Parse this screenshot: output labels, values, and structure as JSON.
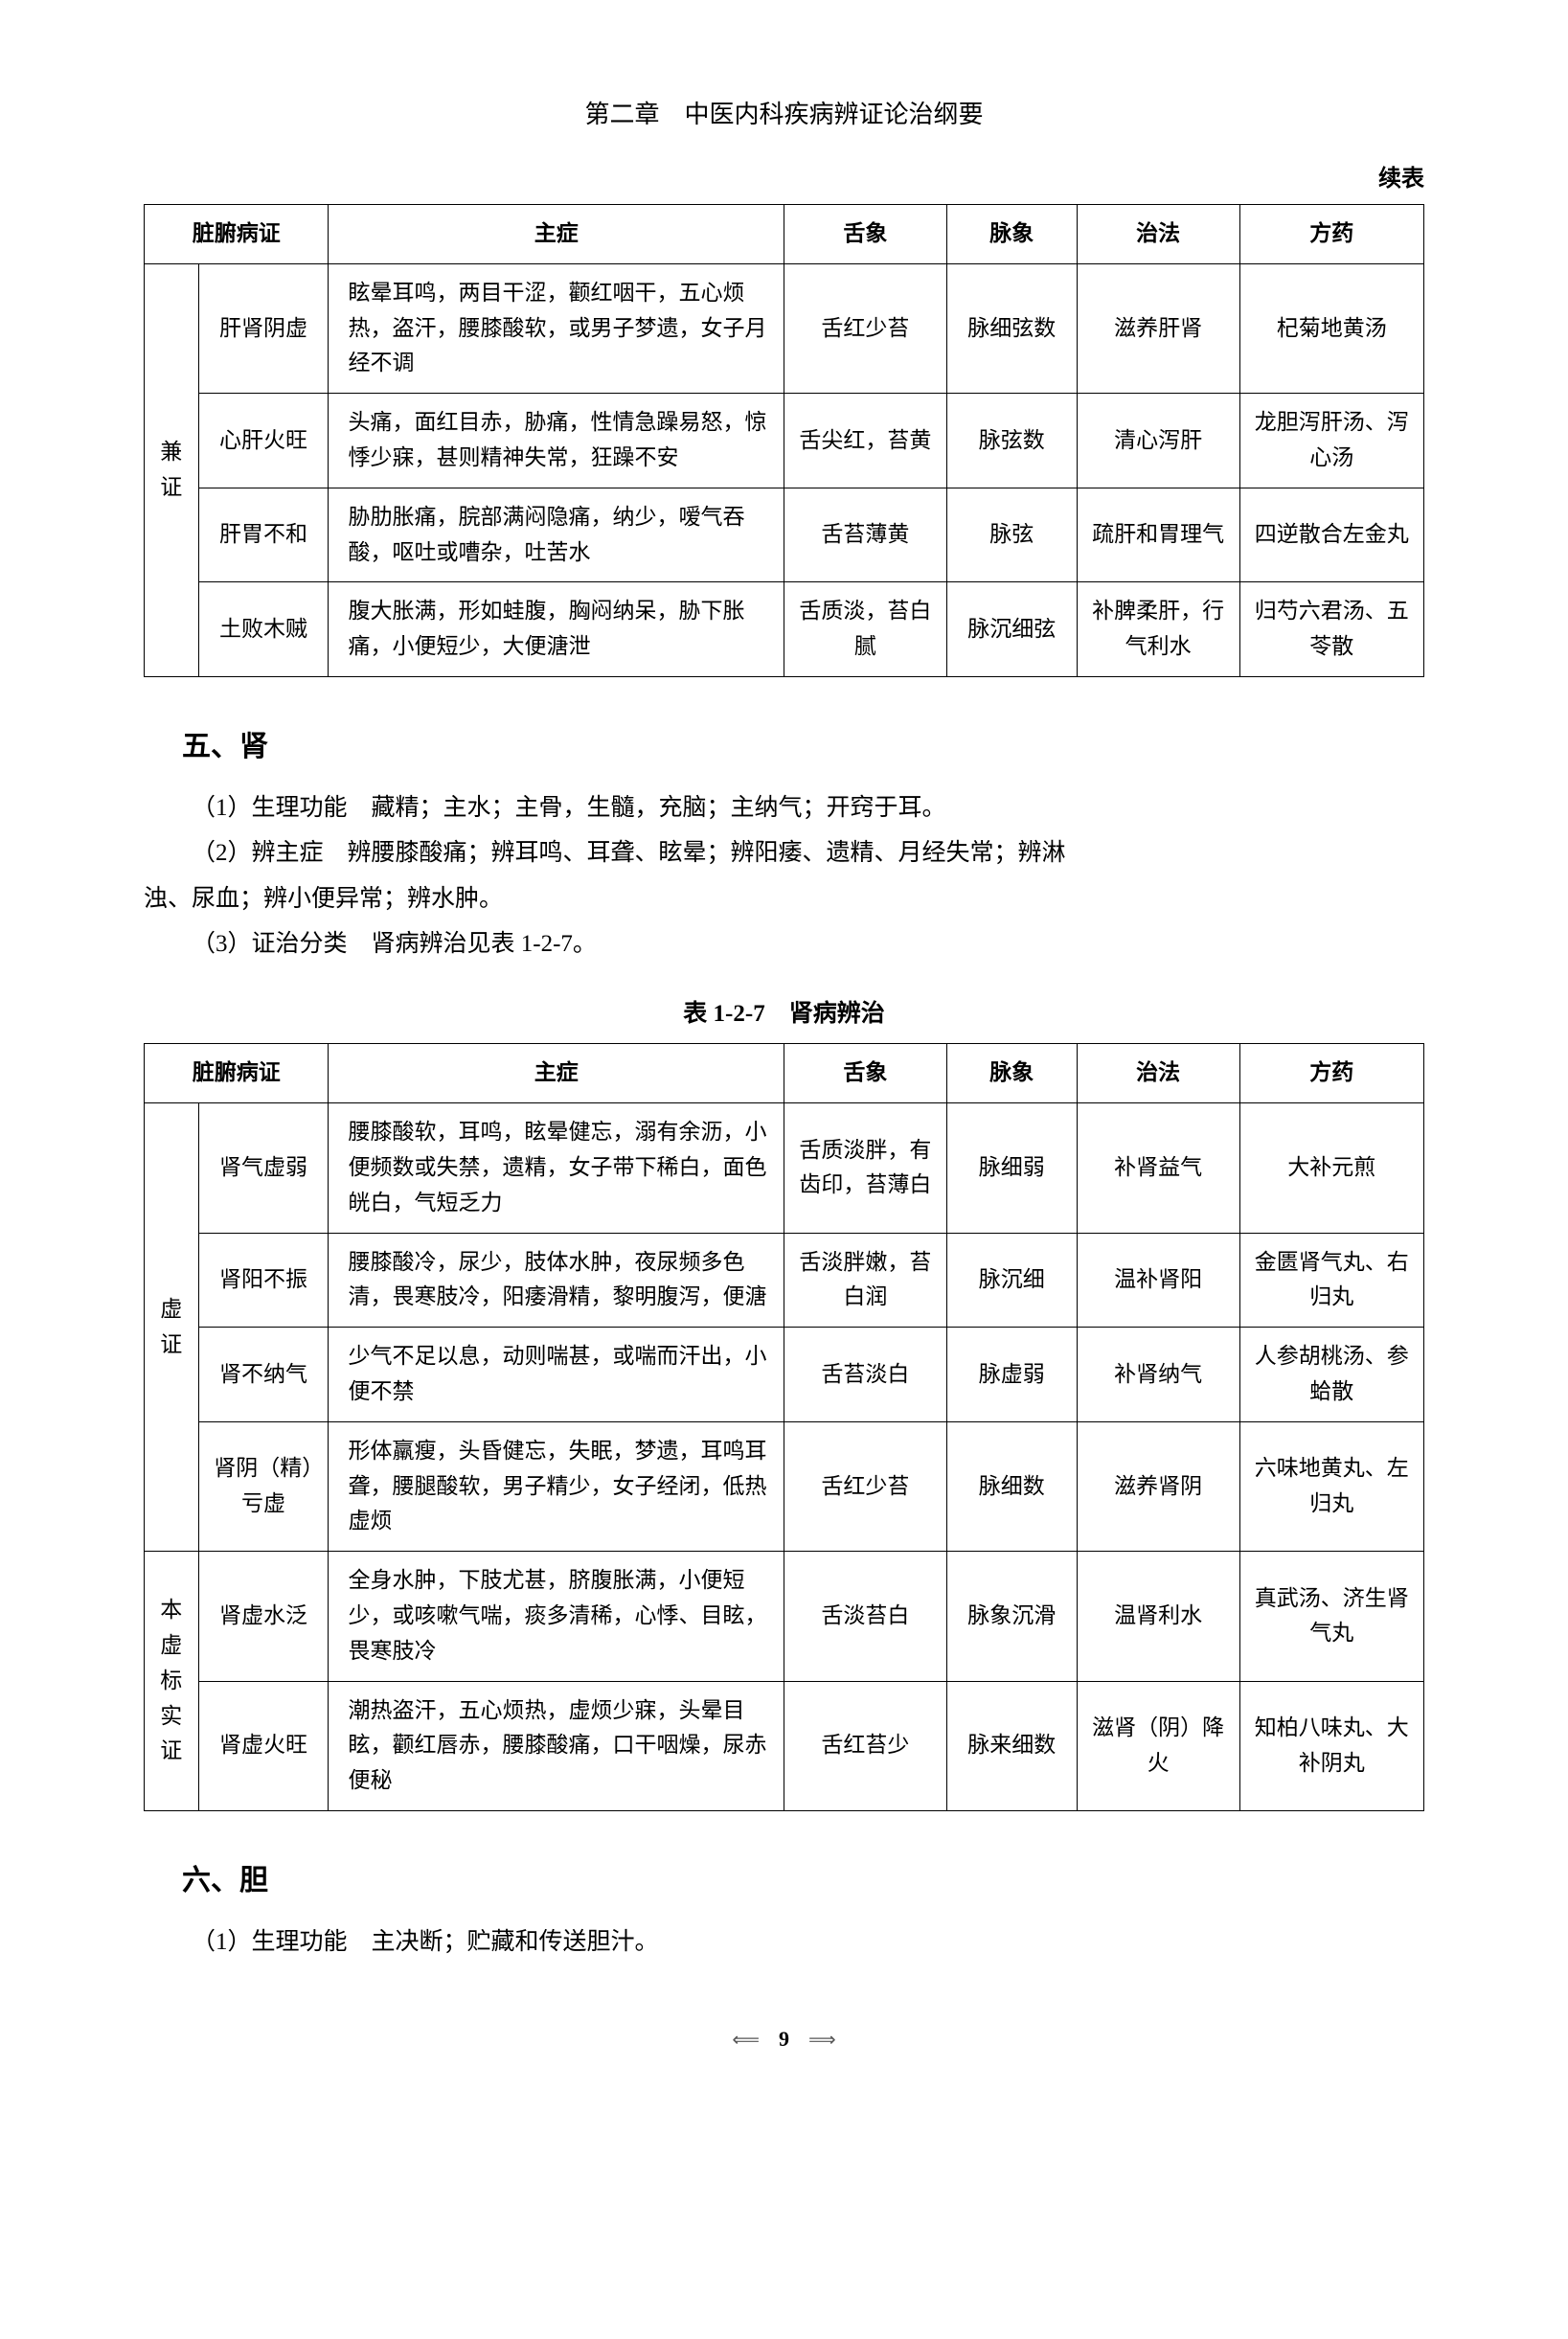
{
  "chapter_header": "第二章　中医内科疾病辨证论治纲要",
  "table1": {
    "continued_label": "续表",
    "headers": [
      "脏腑病证",
      "主症",
      "舌象",
      "脉象",
      "治法",
      "方药"
    ],
    "category_label": "兼证",
    "rows": [
      {
        "subtype": "肝肾阴虚",
        "symptoms": "眩晕耳鸣，两目干涩，颧红咽干，五心烦热，盗汗，腰膝酸软，或男子梦遗，女子月经不调",
        "tongue": "舌红少苔",
        "pulse": "脉细弦数",
        "treatment": "滋养肝肾",
        "formula": "杞菊地黄汤"
      },
      {
        "subtype": "心肝火旺",
        "symptoms": "头痛，面红目赤，胁痛，性情急躁易怒，惊悸少寐，甚则精神失常，狂躁不安",
        "tongue": "舌尖红，苔黄",
        "pulse": "脉弦数",
        "treatment": "清心泻肝",
        "formula": "龙胆泻肝汤、泻心汤"
      },
      {
        "subtype": "肝胃不和",
        "symptoms": "胁肋胀痛，脘部满闷隐痛，纳少，嗳气吞酸，呕吐或嘈杂，吐苦水",
        "tongue": "舌苔薄黄",
        "pulse": "脉弦",
        "treatment": "疏肝和胃理气",
        "formula": "四逆散合左金丸"
      },
      {
        "subtype": "土败木贼",
        "symptoms": "腹大胀满，形如蛙腹，胸闷纳呆，胁下胀痛，小便短少，大便溏泄",
        "tongue": "舌质淡，苔白腻",
        "pulse": "脉沉细弦",
        "treatment": "补脾柔肝，行气利水",
        "formula": "归芍六君汤、五苓散"
      }
    ]
  },
  "section5": {
    "title": "五、肾",
    "line1": "（1）生理功能　藏精；主水；主骨，生髓，充脑；主纳气；开窍于耳。",
    "line2": "（2）辨主症　辨腰膝酸痛；辨耳鸣、耳聋、眩晕；辨阳痿、遗精、月经失常；辨淋",
    "line2b": "浊、尿血；辨小便异常；辨水肿。",
    "line3": "（3）证治分类　肾病辨治见表 1-2-7。"
  },
  "table2": {
    "caption": "表 1-2-7　肾病辨治",
    "headers": [
      "脏腑病证",
      "主症",
      "舌象",
      "脉象",
      "治法",
      "方药"
    ],
    "cat1_label": "虚证",
    "cat2_label": "本虚标实证",
    "rows1": [
      {
        "subtype": "肾气虚弱",
        "symptoms": "腰膝酸软，耳鸣，眩晕健忘，溺有余沥，小便频数或失禁，遗精，女子带下稀白，面色㿠白，气短乏力",
        "tongue": "舌质淡胖，有齿印，苔薄白",
        "pulse": "脉细弱",
        "treatment": "补肾益气",
        "formula": "大补元煎"
      },
      {
        "subtype": "肾阳不振",
        "symptoms": "腰膝酸冷，尿少，肢体水肿，夜尿频多色清，畏寒肢冷，阳痿滑精，黎明腹泻，便溏",
        "tongue": "舌淡胖嫩，苔白润",
        "pulse": "脉沉细",
        "treatment": "温补肾阳",
        "formula": "金匮肾气丸、右归丸"
      },
      {
        "subtype": "肾不纳气",
        "symptoms": "少气不足以息，动则喘甚，或喘而汗出，小便不禁",
        "tongue": "舌苔淡白",
        "pulse": "脉虚弱",
        "treatment": "补肾纳气",
        "formula": "人参胡桃汤、参蛤散"
      },
      {
        "subtype": "肾阴（精）亏虚",
        "symptoms": "形体羸瘦，头昏健忘，失眠，梦遗，耳鸣耳聋，腰腿酸软，男子精少，女子经闭，低热虚烦",
        "tongue": "舌红少苔",
        "pulse": "脉细数",
        "treatment": "滋养肾阴",
        "formula": "六味地黄丸、左归丸"
      }
    ],
    "rows2": [
      {
        "subtype": "肾虚水泛",
        "symptoms": "全身水肿，下肢尤甚，脐腹胀满，小便短少，或咳嗽气喘，痰多清稀，心悸、目眩，畏寒肢冷",
        "tongue": "舌淡苔白",
        "pulse": "脉象沉滑",
        "treatment": "温肾利水",
        "formula": "真武汤、济生肾气丸"
      },
      {
        "subtype": "肾虚火旺",
        "symptoms": "潮热盗汗，五心烦热，虚烦少寐，头晕目眩，颧红唇赤，腰膝酸痛，口干咽燥，尿赤便秘",
        "tongue": "舌红苔少",
        "pulse": "脉来细数",
        "treatment": "滋肾（阴）降火",
        "formula": "知柏八味丸、大补阴丸"
      }
    ]
  },
  "section6": {
    "title": "六、胆",
    "line1": "（1）生理功能　主决断；贮藏和传送胆汁。"
  },
  "page_number": "9"
}
